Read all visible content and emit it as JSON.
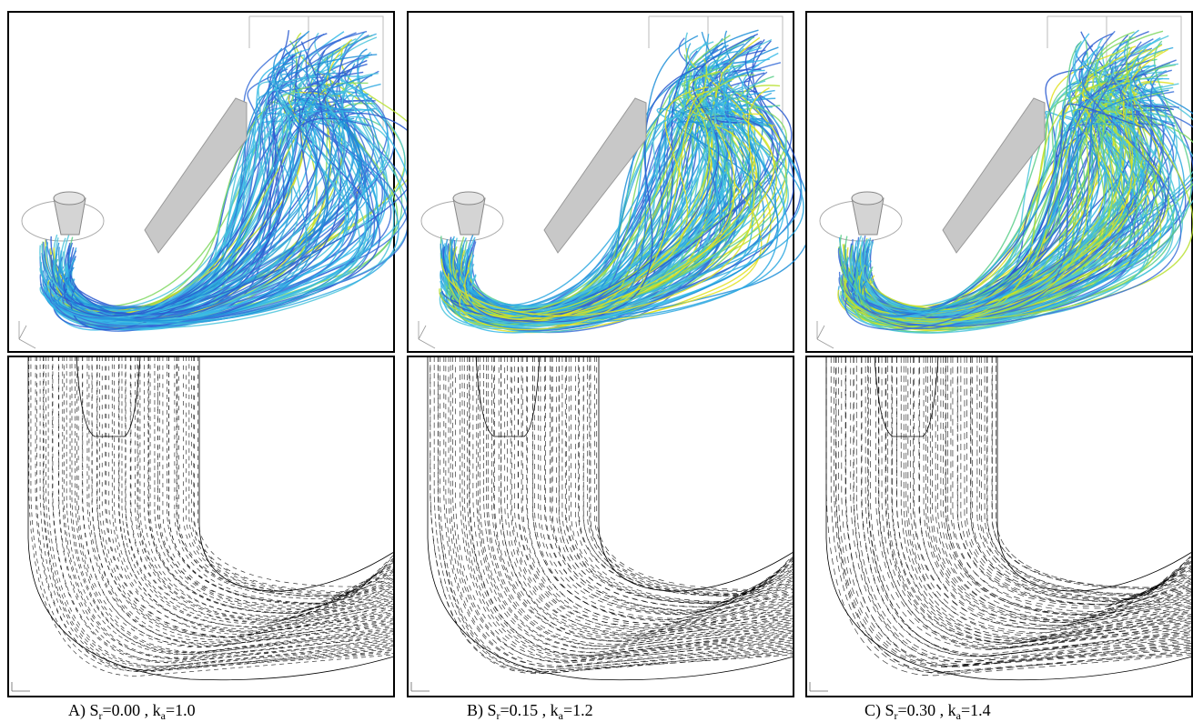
{
  "captions": [
    {
      "parts": [
        "A) S",
        "r",
        "=0.00 , k",
        "a",
        "=1.0"
      ]
    },
    {
      "parts": [
        "B) S",
        "r",
        "=0.15 , k",
        "a",
        "=1.2"
      ]
    },
    {
      "parts": [
        "C) S",
        "r",
        "=0.30 , k",
        "a",
        "=1.4"
      ]
    }
  ]
}
